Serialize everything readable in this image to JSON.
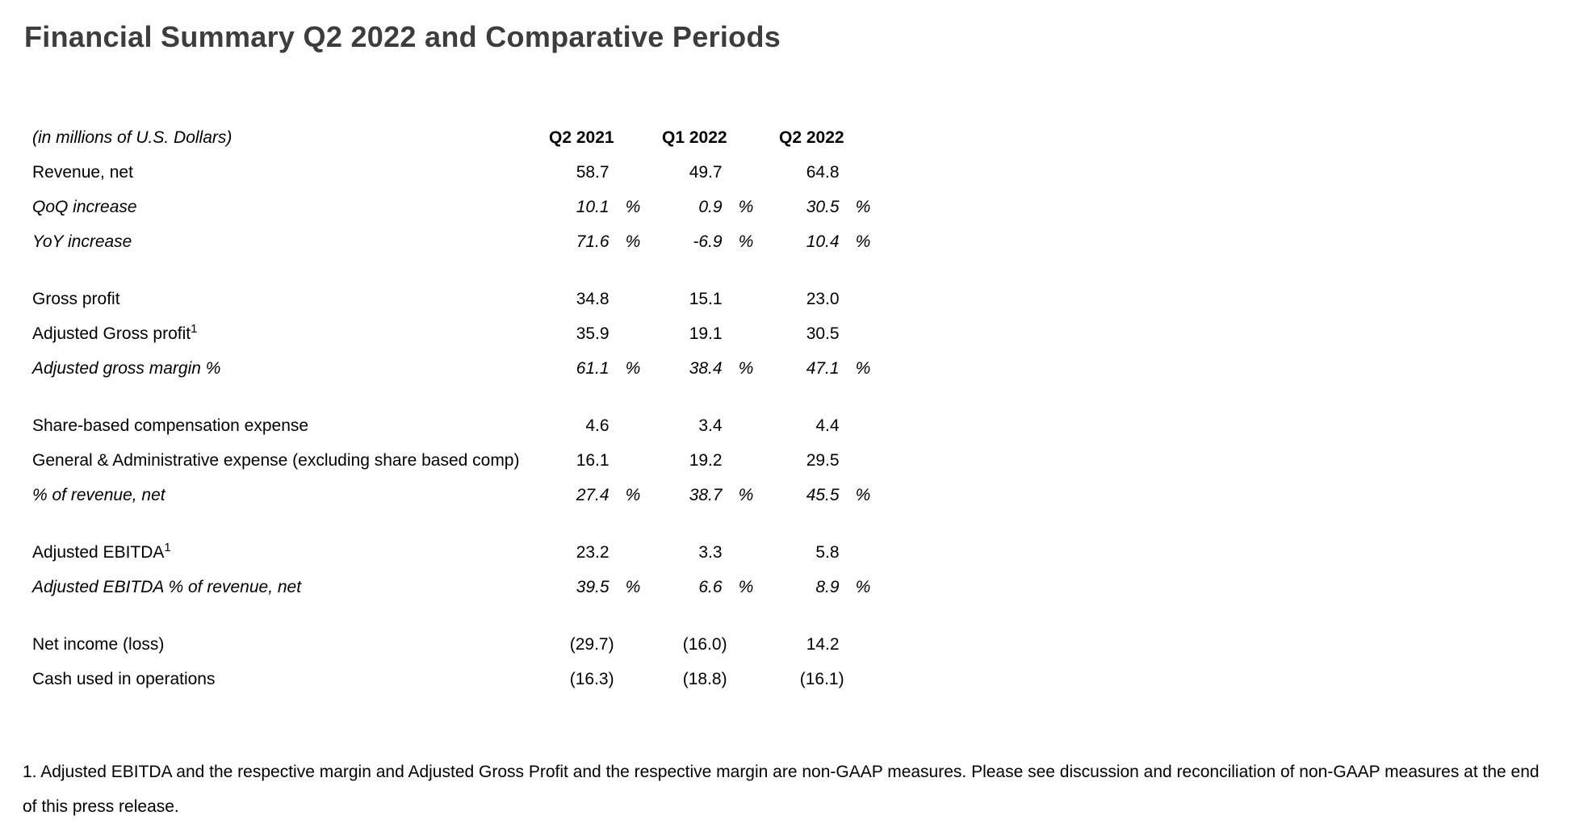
{
  "page": {
    "title": "Financial Summary Q2 2022 and Comparative Periods"
  },
  "colors": {
    "background": "#ffffff",
    "title_text": "#3d3d3d",
    "body_text": "#000000"
  },
  "table": {
    "unit_label": "(in millions of U.S. Dollars)",
    "columns": [
      "Q2 2021",
      "Q1 2022",
      "Q2 2022"
    ],
    "rows": [
      {
        "label": "Revenue, net",
        "sup": "",
        "values": [
          "58.7",
          "49.7",
          "64.8"
        ],
        "pct": [
          "",
          "",
          ""
        ]
      },
      {
        "label": "QoQ increase",
        "sup": "",
        "values": [
          "10.1",
          "0.9",
          "30.5"
        ],
        "pct": [
          "%",
          "%",
          "%"
        ]
      },
      {
        "label": "YoY increase",
        "sup": "",
        "values": [
          "71.6",
          "-6.9",
          "10.4"
        ],
        "pct": [
          "%",
          "%",
          "%"
        ]
      },
      {
        "label": "Gross profit",
        "sup": "",
        "values": [
          "34.8",
          "15.1",
          "23.0"
        ],
        "pct": [
          "",
          "",
          ""
        ]
      },
      {
        "label": "Adjusted Gross profit",
        "sup": "1",
        "values": [
          "35.9",
          "19.1",
          "30.5"
        ],
        "pct": [
          "",
          "",
          ""
        ]
      },
      {
        "label": "Adjusted gross margin %",
        "sup": "",
        "values": [
          "61.1",
          "38.4",
          "47.1"
        ],
        "pct": [
          "%",
          "%",
          "%"
        ]
      },
      {
        "label": "Share-based compensation expense",
        "sup": "",
        "values": [
          "4.6",
          "3.4",
          "4.4"
        ],
        "pct": [
          "",
          "",
          ""
        ]
      },
      {
        "label": "General & Administrative expense (excluding share based comp)",
        "sup": "",
        "values": [
          "16.1",
          "19.2",
          "29.5"
        ],
        "pct": [
          "",
          "",
          ""
        ]
      },
      {
        "label": "% of revenue, net",
        "sup": "",
        "values": [
          "27.4",
          "38.7",
          "45.5"
        ],
        "pct": [
          "%",
          "%",
          "%"
        ]
      },
      {
        "label": "Adjusted EBITDA",
        "sup": "1",
        "values": [
          "23.2",
          "3.3",
          "5.8"
        ],
        "pct": [
          "",
          "",
          ""
        ]
      },
      {
        "label": "Adjusted EBITDA % of revenue, net",
        "sup": "",
        "values": [
          "39.5",
          "6.6",
          "8.9"
        ],
        "pct": [
          "%",
          "%",
          "%"
        ]
      },
      {
        "label": "Net income (loss)",
        "sup": "",
        "values": [
          "(29.7)",
          "(16.0)",
          "14.2"
        ],
        "pct": [
          "",
          "",
          ""
        ]
      },
      {
        "label": "Cash used in operations",
        "sup": "",
        "values": [
          "(16.3)",
          "(18.8)",
          "(16.1)"
        ],
        "pct": [
          "",
          "",
          ""
        ]
      }
    ]
  },
  "footnote": {
    "text": "1. Adjusted EBITDA and the respective margin and Adjusted Gross Profit and the respective margin are non-GAAP measures. Please see discussion and reconciliation of non-GAAP measures at the end of this press release."
  }
}
